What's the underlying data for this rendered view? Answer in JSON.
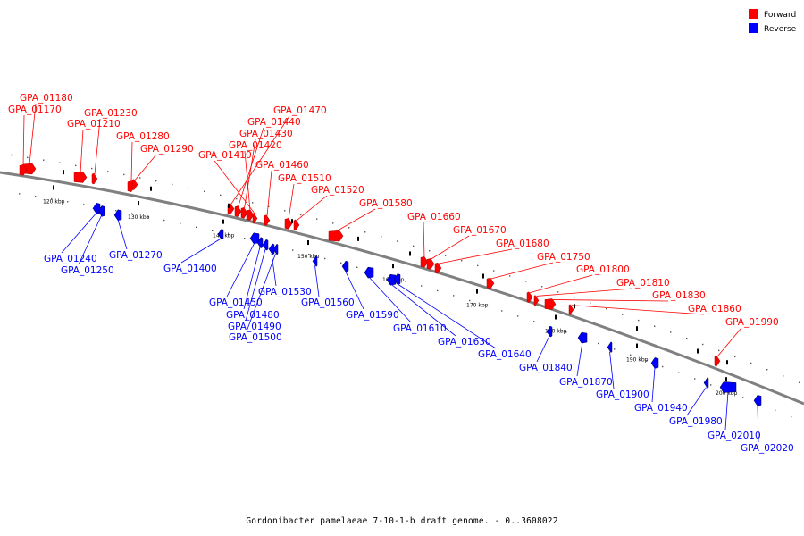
{
  "caption": "Gordonibacter pamelaeae 7-10-1-b draft genome. - 0..3608022",
  "legend": [
    {
      "label": "Forward",
      "color": "#ff0000"
    },
    {
      "label": "Reverse",
      "color": "#0000ff"
    }
  ],
  "colors": {
    "forward": "#ff0000",
    "reverse": "#0000ff",
    "backbone": "#808080"
  },
  "scale_ticks": [
    "120 kbp",
    "130 kbp",
    "140 kbp",
    "150 kbp",
    "160 kbp",
    "170 kbp",
    "180 kbp",
    "190 kbp",
    "200 kbp"
  ],
  "forward_genes": [
    "GPA_01180",
    "GPA_01170",
    "GPA_01230",
    "GPA_01210",
    "GPA_01280",
    "GPA_01290",
    "GPA_01470",
    "GPA_01440",
    "GPA_01430",
    "GPA_01420",
    "GPA_01410",
    "GPA_01460",
    "GPA_01510",
    "GPA_01520",
    "GPA_01580",
    "GPA_01660",
    "GPA_01670",
    "GPA_01680",
    "GPA_01750",
    "GPA_01800",
    "GPA_01810",
    "GPA_01830",
    "GPA_01860",
    "GPA_01990"
  ],
  "reverse_genes": [
    "GPA_01240",
    "GPA_01250",
    "GPA_01270",
    "GPA_01400",
    "GPA_01530",
    "GPA_01450",
    "GPA_01480",
    "GPA_01490",
    "GPA_01500",
    "GPA_01560",
    "GPA_01590",
    "GPA_01610",
    "GPA_01630",
    "GPA_01640",
    "GPA_01840",
    "GPA_01870",
    "GPA_01900",
    "GPA_01940",
    "GPA_01980",
    "GPA_02010",
    "GPA_02020"
  ]
}
